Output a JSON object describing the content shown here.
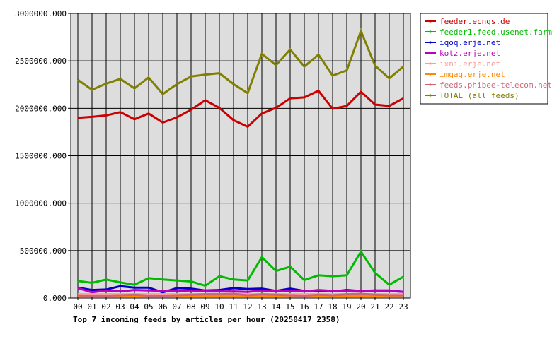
{
  "chart_data": {
    "type": "line",
    "title": "Top 7 incoming feeds by articles per hour (20250417 2358)",
    "xlabel": "",
    "ylabel": "",
    "categories": [
      "00",
      "01",
      "02",
      "03",
      "04",
      "05",
      "06",
      "07",
      "08",
      "09",
      "10",
      "11",
      "12",
      "13",
      "14",
      "15",
      "16",
      "17",
      "18",
      "19",
      "20",
      "21",
      "22",
      "23"
    ],
    "y_ticks": [
      "0.000",
      "500000.000",
      "1000000.000",
      "1500000.000",
      "2000000.000",
      "2500000.000",
      "3000000.000"
    ],
    "ylim": [
      0,
      3000000
    ],
    "grid": true,
    "legend_position": "right",
    "series": [
      {
        "name": "feeder.ecngs.de",
        "color": "#cc0000",
        "values": [
          1900000,
          1910000,
          1925000,
          1960000,
          1885000,
          1945000,
          1850000,
          1905000,
          1985000,
          2085000,
          2005000,
          1875000,
          1805000,
          1945000,
          2005000,
          2105000,
          2115000,
          2185000,
          1995000,
          2025000,
          2175000,
          2040000,
          2025000,
          2105000
        ]
      },
      {
        "name": "feeder1.feed.usenet.farm",
        "color": "#00bb00",
        "values": [
          180000,
          160000,
          195000,
          165000,
          140000,
          210000,
          195000,
          185000,
          175000,
          130000,
          230000,
          195000,
          185000,
          430000,
          285000,
          330000,
          190000,
          240000,
          230000,
          240000,
          490000,
          265000,
          140000,
          225000
        ]
      },
      {
        "name": "iqoq.erje.net",
        "color": "#0000cc",
        "values": [
          110000,
          85000,
          90000,
          125000,
          110000,
          110000,
          60000,
          105000,
          100000,
          80000,
          85000,
          105000,
          95000,
          100000,
          75000,
          100000,
          75000,
          75000,
          70000,
          85000,
          75000,
          80000,
          80000,
          65000
        ]
      },
      {
        "name": "kotz.erje.net",
        "color": "#bb00bb",
        "values": [
          105000,
          60000,
          80000,
          70000,
          85000,
          80000,
          75000,
          75000,
          80000,
          70000,
          70000,
          70000,
          65000,
          80000,
          70000,
          75000,
          70000,
          85000,
          75000,
          75000,
          70000,
          75000,
          75000,
          65000
        ]
      },
      {
        "name": "ixni.erje.net",
        "color": "#ff9999",
        "values": [
          40000,
          40000,
          40000,
          40000,
          40000,
          40000,
          40000,
          40000,
          40000,
          40000,
          40000,
          40000,
          40000,
          40000,
          40000,
          40000,
          40000,
          40000,
          40000,
          40000,
          40000,
          40000,
          40000,
          40000
        ]
      },
      {
        "name": "imqag.erje.net",
        "color": "#ff8800",
        "values": [
          25000,
          25000,
          25000,
          25000,
          25000,
          25000,
          25000,
          25000,
          25000,
          25000,
          25000,
          25000,
          25000,
          25000,
          25000,
          25000,
          25000,
          25000,
          25000,
          25000,
          25000,
          25000,
          25000,
          25000
        ]
      },
      {
        "name": "feeds.phibee-telecom.net",
        "color": "#cc6677",
        "values": [
          30000,
          20000,
          25000,
          30000,
          35000,
          25000,
          25000,
          30000,
          35000,
          40000,
          40000,
          45000,
          30000,
          40000,
          35000,
          30000,
          25000,
          35000,
          30000,
          40000,
          45000,
          35000,
          30000,
          30000
        ]
      },
      {
        "name": "TOTAL (all feeds)",
        "color": "#808000",
        "values": [
          2300000,
          2195000,
          2260000,
          2310000,
          2210000,
          2325000,
          2150000,
          2255000,
          2335000,
          2355000,
          2370000,
          2255000,
          2160000,
          2575000,
          2455000,
          2620000,
          2440000,
          2565000,
          2345000,
          2400000,
          2815000,
          2450000,
          2315000,
          2440000
        ]
      }
    ]
  }
}
